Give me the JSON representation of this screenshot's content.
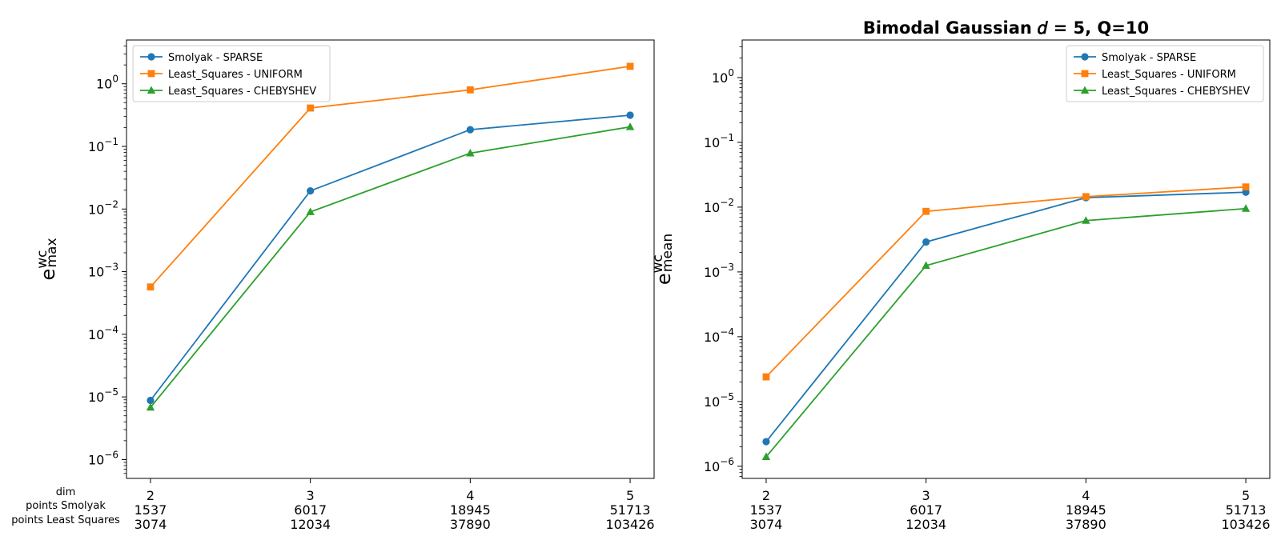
{
  "figure": {
    "row_labels": [
      "dim",
      "points Smolyak",
      "points Least Squares"
    ]
  },
  "chart_data": [
    {
      "type": "line",
      "title": "",
      "yscale": "log",
      "ylim": [
        5e-07,
        5
      ],
      "ylabel": {
        "main": "e",
        "sup": "wc",
        "sub": "max"
      },
      "x": [
        2,
        3,
        4,
        5
      ],
      "xlim": [
        1.85,
        5.15
      ],
      "xlabels": [
        [
          "2",
          "1537",
          "3074"
        ],
        [
          "3",
          "6017",
          "12034"
        ],
        [
          "4",
          "18945",
          "37890"
        ],
        [
          "5",
          "51713",
          "103426"
        ]
      ],
      "yticks": [
        {
          "value": 1e-06,
          "base": "10",
          "exp": "−6"
        },
        {
          "value": 1e-05,
          "base": "10",
          "exp": "−5"
        },
        {
          "value": 0.0001,
          "base": "10",
          "exp": "−4"
        },
        {
          "value": 0.001,
          "base": "10",
          "exp": "−3"
        },
        {
          "value": 0.01,
          "base": "10",
          "exp": "−2"
        },
        {
          "value": 0.1,
          "base": "10",
          "exp": "−1"
        },
        {
          "value": 1,
          "base": "10",
          "exp": "0"
        }
      ],
      "legend_position": "top-left",
      "grid": false,
      "series": [
        {
          "name": "Smolyak - SPARSE",
          "color": "#1f77b4",
          "marker": "circle",
          "values": [
            8.8e-06,
            0.0195,
            0.185,
            0.315
          ]
        },
        {
          "name": "Least_Squares - UNIFORM",
          "color": "#ff7f0e",
          "marker": "square",
          "values": [
            0.00057,
            0.41,
            0.8,
            1.9
          ]
        },
        {
          "name": "Least_Squares - CHEBYSHEV",
          "color": "#2ca02c",
          "marker": "triangle",
          "values": [
            6.8e-06,
            0.009,
            0.078,
            0.205
          ]
        }
      ]
    },
    {
      "type": "line",
      "title": "Bimodal Gaussian 𝑑 = 5, Q=10",
      "yscale": "log",
      "ylim": [
        6.5e-07,
        3.8
      ],
      "ylabel": {
        "main": "e",
        "sup": "wc",
        "sub": "mean"
      },
      "x": [
        2,
        3,
        4,
        5
      ],
      "xlim": [
        1.85,
        5.15
      ],
      "xlabels": [
        [
          "2",
          "1537",
          "3074"
        ],
        [
          "3",
          "6017",
          "12034"
        ],
        [
          "4",
          "18945",
          "37890"
        ],
        [
          "5",
          "51713",
          "103426"
        ]
      ],
      "yticks": [
        {
          "value": 1e-06,
          "base": "10",
          "exp": "−6"
        },
        {
          "value": 1e-05,
          "base": "10",
          "exp": "−5"
        },
        {
          "value": 0.0001,
          "base": "10",
          "exp": "−4"
        },
        {
          "value": 0.001,
          "base": "10",
          "exp": "−3"
        },
        {
          "value": 0.01,
          "base": "10",
          "exp": "−2"
        },
        {
          "value": 0.1,
          "base": "10",
          "exp": "−1"
        },
        {
          "value": 1,
          "base": "10",
          "exp": "0"
        }
      ],
      "legend_position": "top-right",
      "grid": false,
      "series": [
        {
          "name": "Smolyak - SPARSE",
          "color": "#1f77b4",
          "marker": "circle",
          "values": [
            2.4e-06,
            0.0029,
            0.014,
            0.017
          ]
        },
        {
          "name": "Least_Squares - UNIFORM",
          "color": "#ff7f0e",
          "marker": "square",
          "values": [
            2.4e-05,
            0.0086,
            0.0145,
            0.0205
          ]
        },
        {
          "name": "Least_Squares - CHEBYSHEV",
          "color": "#2ca02c",
          "marker": "triangle",
          "values": [
            1.4e-06,
            0.00125,
            0.0062,
            0.0095
          ]
        }
      ]
    }
  ]
}
